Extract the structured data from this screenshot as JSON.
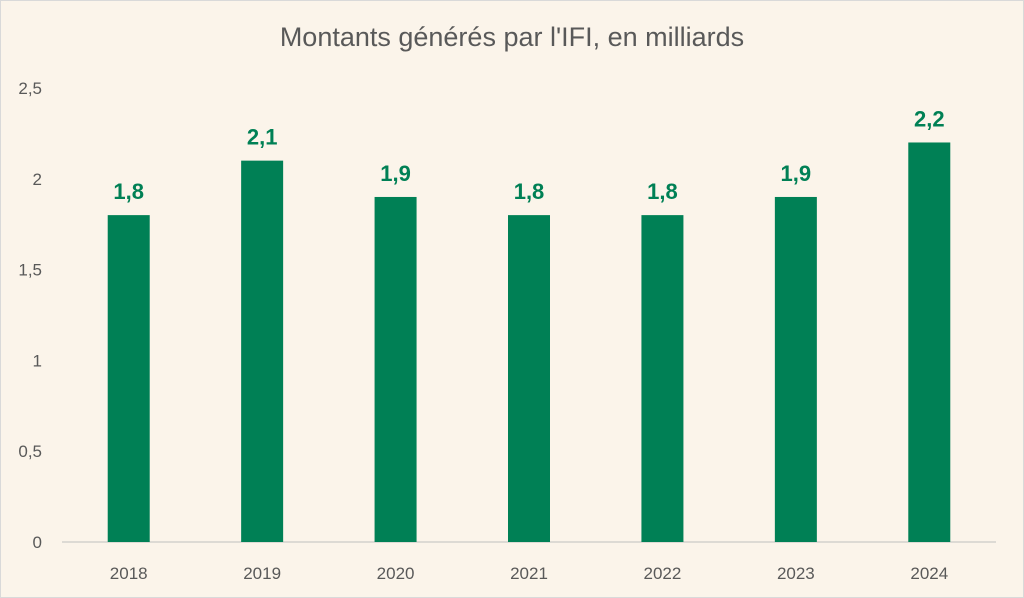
{
  "chart_data": {
    "type": "bar",
    "title": "Montants générés par l'IFI, en milliards",
    "categories": [
      "2018",
      "2019",
      "2020",
      "2021",
      "2022",
      "2023",
      "2024"
    ],
    "values": [
      1.8,
      2.1,
      1.9,
      1.8,
      1.8,
      1.9,
      2.2
    ],
    "data_labels": [
      "1,8",
      "2,1",
      "1,9",
      "1,8",
      "1,8",
      "1,9",
      "2,2"
    ],
    "y_ticks": [
      "0",
      "0,5",
      "1",
      "1,5",
      "2",
      "2,5"
    ],
    "ylim": [
      0,
      2.5
    ],
    "grid": false,
    "legend": "none",
    "colors": {
      "bar": "#008055",
      "label": "#008055",
      "axis_text": "#595959",
      "background": "#fbf4ea"
    }
  }
}
